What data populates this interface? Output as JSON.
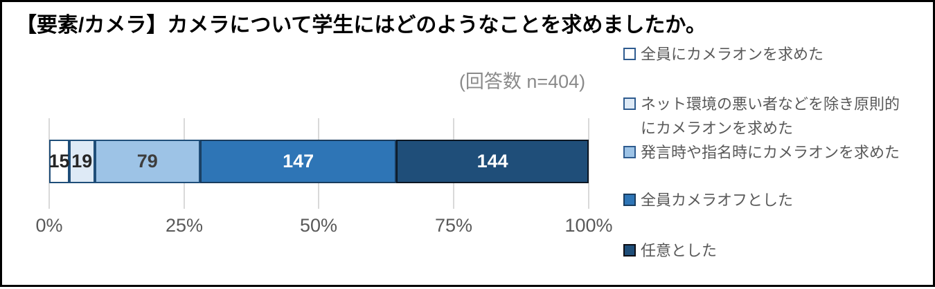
{
  "title": "【要素/カメラ】カメラについて学生にはどのようなことを求めましたか。",
  "note": "(回答数 n=404)",
  "chart_data": {
    "type": "bar",
    "subtype": "horizontal-stacked-100pct",
    "title": "【要素/カメラ】カメラについて学生にはどのようなことを求めましたか。",
    "annotation": "(回答数 n=404)",
    "n_total": 404,
    "xlim": [
      0,
      100
    ],
    "x_ticks": [
      "0%",
      "25%",
      "50%",
      "75%",
      "100%"
    ],
    "grid": "vertical-only",
    "gridline_color": "#d9d9d9",
    "legend_position": "right",
    "segments": [
      {
        "name": "全員にカメラオンを求めた",
        "value": 15,
        "fill": "#ffffff",
        "border": "#1f4e79",
        "label_color": "#262626"
      },
      {
        "name": "ネット環境の悪い者などを除き原則的にカメラオンを求めた",
        "value": 19,
        "fill": "#deeaf6",
        "border": "#1f4e79",
        "label_color": "#262626"
      },
      {
        "name": "発言時や指名時にカメラオンを求めた",
        "value": 79,
        "fill": "#9dc3e6",
        "border": "#1f4e79",
        "label_color": "#3d3d3d"
      },
      {
        "name": "全員カメラオフとした",
        "value": 147,
        "fill": "#2e75b6",
        "border": "#193c5e",
        "label_color": "#ffffff"
      },
      {
        "name": "任意とした",
        "value": 144,
        "fill": "#1f4e79",
        "border": "#0c1723",
        "label_color": "#ffffff"
      }
    ]
  },
  "legend": {
    "items": [
      {
        "label": "全員にカメラオンを求めた",
        "fill": "#ffffff",
        "border": "#2e5b8f"
      },
      {
        "label": "ネット環境の悪い者などを除き原則的\nにカメラオンを求めた",
        "fill": "#deeaf6",
        "border": "#2e5b8f"
      },
      {
        "label": "発言時や指名時にカメラオンを求めた",
        "fill": "#9dc3e6",
        "border": "#2e5b8f"
      },
      {
        "label": "全員カメラオフとした",
        "fill": "#2e75b6",
        "border": "#193c5e"
      },
      {
        "label": "任意とした",
        "fill": "#1f4e79",
        "border": "#0d0d14"
      }
    ]
  }
}
